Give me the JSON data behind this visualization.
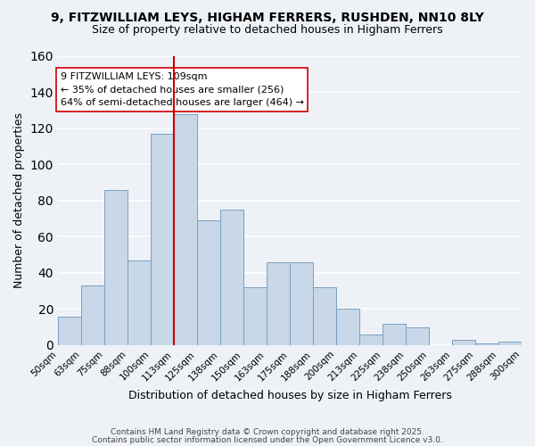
{
  "title_line1": "9, FITZWILLIAM LEYS, HIGHAM FERRERS, RUSHDEN, NN10 8LY",
  "title_line2": "Size of property relative to detached houses in Higham Ferrers",
  "xlabel": "Distribution of detached houses by size in Higham Ferrers",
  "ylabel": "Number of detached properties",
  "tick_labels": [
    "50sqm",
    "63sqm",
    "75sqm",
    "88sqm",
    "100sqm",
    "113sqm",
    "125sqm",
    "138sqm",
    "150sqm",
    "163sqm",
    "175sqm",
    "188sqm",
    "200sqm",
    "213sqm",
    "225sqm",
    "238sqm",
    "250sqm",
    "263sqm",
    "275sqm",
    "288sqm",
    "300sqm"
  ],
  "bar_values": [
    16,
    33,
    86,
    47,
    117,
    128,
    69,
    75,
    32,
    46,
    46,
    32,
    20,
    6,
    12,
    10,
    0,
    3,
    1,
    2
  ],
  "bar_color": "#c8d8e8",
  "bar_edge_color": "#7aa0c0",
  "vline_index": 5,
  "annotation_title": "9 FITZWILLIAM LEYS: 109sqm",
  "annotation_line1": "← 35% of detached houses are smaller (256)",
  "annotation_line2": "64% of semi-detached houses are larger (464) →",
  "vline_color": "#cc0000",
  "ylim": [
    0,
    160
  ],
  "yticks": [
    0,
    20,
    40,
    60,
    80,
    100,
    120,
    140,
    160
  ],
  "footer_line1": "Contains HM Land Registry data © Crown copyright and database right 2025.",
  "footer_line2": "Contains public sector information licensed under the Open Government Licence v3.0.",
  "background_color": "#eef2f7",
  "grid_color": "#ffffff"
}
